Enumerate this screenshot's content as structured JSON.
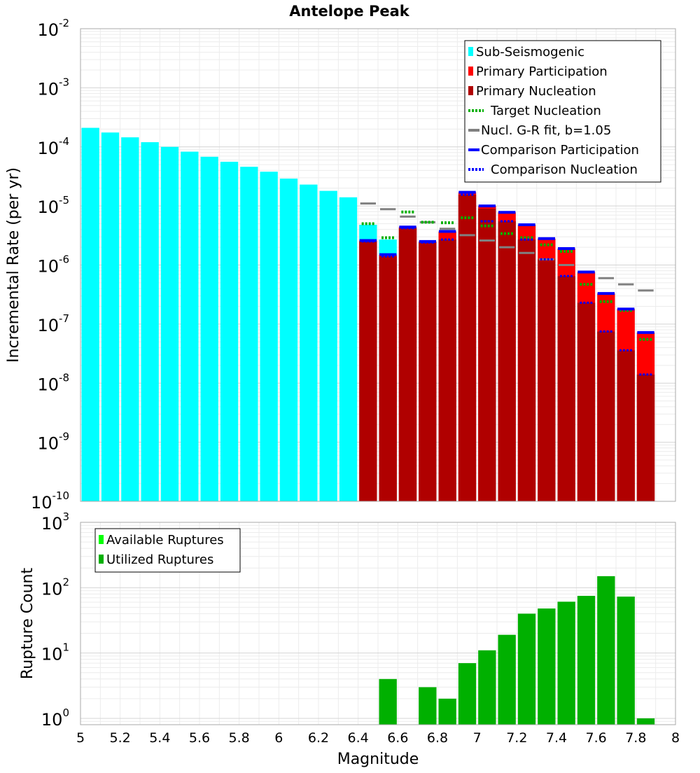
{
  "chart_data": [
    {
      "type": "bar",
      "title": "Antelope Peak",
      "ylabel": "Incremental Rate (per yr)",
      "xlabel": "",
      "yscale": "log",
      "ylim": [
        1e-10,
        0.01
      ],
      "xlim": [
        5,
        8
      ],
      "y_decades": [
        {
          "base": "10",
          "exp": "-10",
          "value": 1e-10
        },
        {
          "base": "10",
          "exp": "-9",
          "value": 1e-09
        },
        {
          "base": "10",
          "exp": "-8",
          "value": 1e-08
        },
        {
          "base": "10",
          "exp": "-7",
          "value": 1e-07
        },
        {
          "base": "10",
          "exp": "-6",
          "value": 1e-06
        },
        {
          "base": "10",
          "exp": "-5",
          "value": 1e-05
        },
        {
          "base": "10",
          "exp": "-4",
          "value": 0.0001
        },
        {
          "base": "10",
          "exp": "-3",
          "value": 0.001
        },
        {
          "base": "10",
          "exp": "-2",
          "value": 0.01
        }
      ],
      "bin_width": 0.1,
      "series": [
        {
          "name": "Sub-Seismogenic",
          "color": "#00ffff",
          "x": [
            5.05,
            5.15,
            5.25,
            5.35,
            5.45,
            5.55,
            5.65,
            5.75,
            5.85,
            5.95,
            6.05,
            6.15,
            6.25,
            6.35,
            6.45,
            6.55
          ],
          "values": [
            0.00021,
            0.000175,
            0.000145,
            0.00012,
            0.0001,
            8.3e-05,
            6.8e-05,
            5.6e-05,
            4.6e-05,
            3.8e-05,
            2.9e-05,
            2.3e-05,
            1.8e-05,
            1.4e-05,
            4.8e-06,
            2.7e-06
          ]
        },
        {
          "name": "Primary Participation",
          "color": "#ff0000",
          "x": [
            6.45,
            6.55,
            6.65,
            6.75,
            6.85,
            6.95,
            7.05,
            7.15,
            7.25,
            7.35,
            7.45,
            7.55,
            7.65,
            7.75,
            7.85
          ],
          "values": [
            2.6e-06,
            1.5e-06,
            4.4e-06,
            2.5e-06,
            3.7e-06,
            1.7e-05,
            1e-05,
            7.8e-06,
            4.8e-06,
            2.8e-06,
            1.9e-06,
            7.6e-07,
            3.3e-07,
            1.8e-07,
            7.2e-08
          ]
        },
        {
          "name": "Primary Nucleation",
          "color": "#b00000",
          "x": [
            6.45,
            6.55,
            6.65,
            6.75,
            6.85,
            6.95,
            7.05,
            7.15,
            7.25,
            7.35,
            7.45,
            7.55,
            7.65,
            7.75,
            7.85
          ],
          "values": [
            2.5e-06,
            1.4e-06,
            4.2e-06,
            2.4e-06,
            2.7e-06,
            1.55e-05,
            9e-06,
            5.5e-06,
            2.7e-06,
            1.25e-06,
            6.5e-07,
            2.3e-07,
            7.5e-08,
            3.6e-08,
            1.4e-08
          ]
        },
        {
          "name": "Target Nucleation",
          "color": "#00b000",
          "style": "dotted",
          "x": [
            6.45,
            6.55,
            6.65,
            6.75,
            6.85,
            6.95,
            7.05,
            7.15,
            7.25,
            7.35,
            7.45,
            7.55,
            7.65,
            7.75,
            7.85
          ],
          "values": [
            5e-06,
            2.9e-06,
            7.9e-06,
            5.3e-06,
            5.2e-06,
            6.3e-06,
            4.6e-06,
            3.4e-06,
            2.9e-06,
            2.2e-06,
            1.7e-06,
            4.7e-07,
            2.4e-07,
            1.7e-07,
            5.5e-08
          ]
        },
        {
          "name": "Nucl. G-R fit, b=1.05",
          "color": "#808080",
          "x": [
            6.45,
            6.55,
            6.65,
            6.75,
            6.85,
            6.95,
            7.05,
            7.15,
            7.25,
            7.35,
            7.45,
            7.55,
            7.65,
            7.75,
            7.85
          ],
          "values": [
            1.1e-05,
            8.8e-06,
            6.6e-06,
            5.3e-06,
            4.1e-06,
            3.2e-06,
            2.6e-06,
            2e-06,
            1.6e-06,
            1.25e-06,
            1e-06,
            7.7e-07,
            6e-07,
            4.7e-07,
            3.7e-07
          ]
        },
        {
          "name": "Comparison Participation",
          "color": "#0000ff",
          "x": [
            6.45,
            6.55,
            6.65,
            6.75,
            6.85,
            6.95,
            7.05,
            7.15,
            7.25,
            7.35,
            7.45,
            7.55,
            7.65,
            7.75,
            7.85
          ],
          "values": [
            2.6e-06,
            1.5e-06,
            4.4e-06,
            2.5e-06,
            3.7e-06,
            1.7e-05,
            1e-05,
            7.8e-06,
            4.8e-06,
            2.8e-06,
            1.9e-06,
            7.6e-07,
            3.3e-07,
            1.8e-07,
            7.2e-08
          ]
        },
        {
          "name": "Comparison Nucleation",
          "color": "#0000ff",
          "style": "dotted",
          "x": [
            6.45,
            6.55,
            6.65,
            6.75,
            6.85,
            6.95,
            7.05,
            7.15,
            7.25,
            7.35,
            7.45,
            7.55,
            7.65,
            7.75,
            7.85
          ],
          "values": [
            2.5e-06,
            1.4e-06,
            4.2e-06,
            2.4e-06,
            2.7e-06,
            1.55e-05,
            5.5e-06,
            5.5e-06,
            2.7e-06,
            1.25e-06,
            6.5e-07,
            2.3e-07,
            7.5e-08,
            3.6e-08,
            1.4e-08
          ]
        }
      ],
      "legend": {
        "placement": "top-right"
      }
    },
    {
      "type": "bar",
      "title": "",
      "ylabel": "Rupture Count",
      "xlabel": "Magnitude",
      "yscale": "log",
      "ylim": [
        0.8,
        1000
      ],
      "xlim": [
        5,
        8
      ],
      "x_ticks": [
        "5",
        "5.2",
        "5.4",
        "5.6",
        "5.8",
        "6",
        "6.2",
        "6.4",
        "6.6",
        "6.8",
        "7",
        "7.2",
        "7.4",
        "7.6",
        "7.8",
        "8"
      ],
      "y_decades": [
        {
          "base": "10",
          "exp": "0",
          "value": 1
        },
        {
          "base": "10",
          "exp": "1",
          "value": 10
        },
        {
          "base": "10",
          "exp": "2",
          "value": 100
        },
        {
          "base": "10",
          "exp": "3",
          "value": 1000
        }
      ],
      "bin_width": 0.1,
      "series": [
        {
          "name": "Available Ruptures",
          "color": "#00ff00",
          "x": [
            6.55,
            6.75,
            6.85,
            6.95,
            7.05,
            7.15,
            7.25,
            7.35,
            7.45,
            7.55,
            7.65,
            7.75,
            7.85
          ],
          "values": [
            4,
            3,
            2,
            7,
            11,
            19,
            40,
            48,
            61,
            75,
            150,
            73,
            1
          ]
        },
        {
          "name": "Utilized Ruptures",
          "color": "#00b000",
          "x": [
            6.55,
            6.75,
            6.85,
            6.95,
            7.05,
            7.15,
            7.25,
            7.35,
            7.45,
            7.55,
            7.65,
            7.75,
            7.85
          ],
          "values": [
            4,
            3,
            2,
            7,
            11,
            19,
            40,
            48,
            61,
            75,
            150,
            73,
            1
          ]
        }
      ],
      "legend": {
        "placement": "top-left"
      }
    }
  ]
}
